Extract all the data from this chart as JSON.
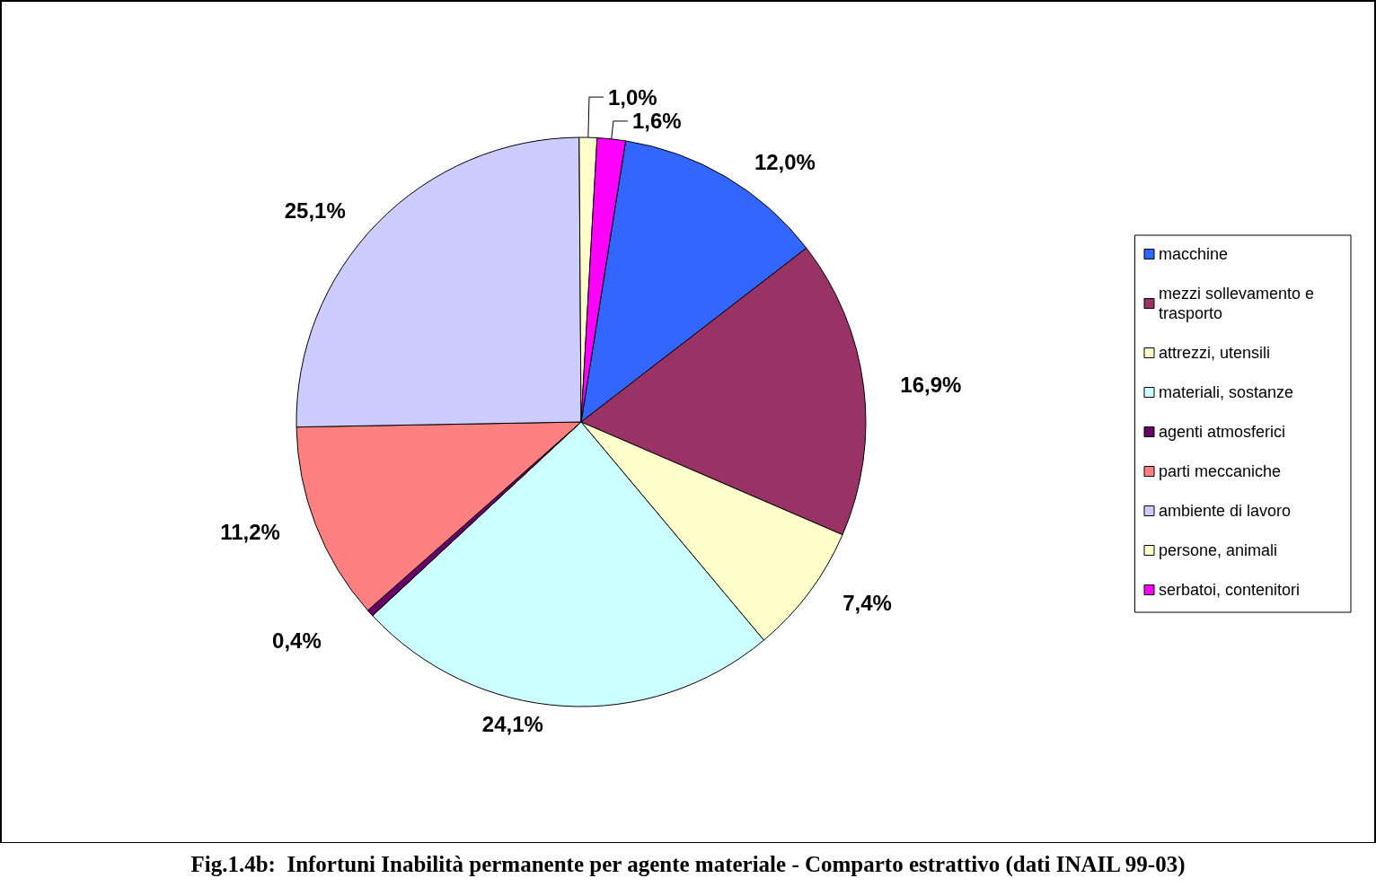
{
  "chart_data": {
    "type": "pie",
    "title": "Fig.1.4b:  Infortuni Inabilità permanente per agente materiale - Comparto estrattivo (dati INAIL 99-03)",
    "categories": [
      "macchine",
      "mezzi sollevamento e trasporto",
      "attrezzi, utensili",
      "materiali, sostanze",
      "agenti atmosferici",
      "parti meccaniche",
      "ambiente di lavoro",
      "persone, animali",
      "serbatoi, contenitori"
    ],
    "values": [
      12.0,
      16.9,
      7.4,
      24.1,
      0.4,
      11.2,
      25.1,
      1.0,
      1.6
    ],
    "value_labels": [
      "12,0%",
      "16,9%",
      "7,4%",
      "24,1%",
      "0,4%",
      "11,2%",
      "25,1%",
      "1,0%",
      "1,6%"
    ],
    "colors": [
      "#3366ff",
      "#993366",
      "#ffffcc",
      "#ccffff",
      "#660066",
      "#ff8080",
      "#ccccff",
      "#ffffcc",
      "#ff00ff"
    ],
    "legend": "right"
  }
}
